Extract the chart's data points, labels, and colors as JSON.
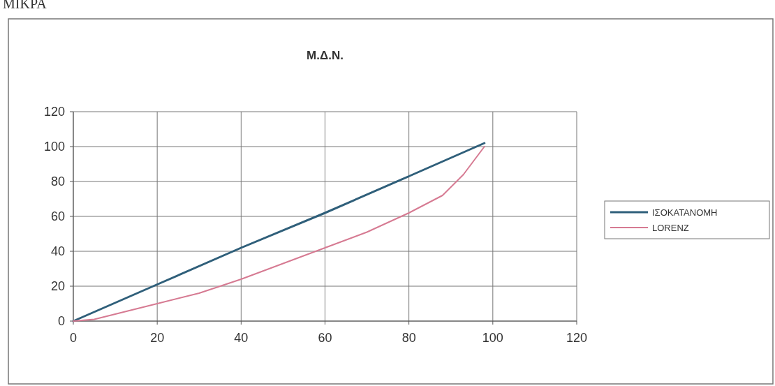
{
  "chart_data": {
    "type": "line",
    "title": "Μ.Δ.Ν.",
    "annotations": [
      "ΜΙΚΡΑ"
    ],
    "series": [
      {
        "name": "ΙΣΟΚΑΤΑΝΟΜΗ",
        "color": "#2f5f7a",
        "x": [
          0,
          20,
          40,
          60,
          80,
          98
        ],
        "values": [
          0,
          21,
          42,
          62,
          83,
          102
        ]
      },
      {
        "name": "LORENZ",
        "color": "#d67a92",
        "x": [
          0,
          5,
          10,
          20,
          30,
          40,
          50,
          60,
          70,
          80,
          88,
          93,
          98
        ],
        "values": [
          0,
          1,
          4,
          10,
          16,
          24,
          33,
          42,
          51,
          62,
          72,
          84,
          100
        ]
      }
    ],
    "xlim": [
      0,
      120
    ],
    "xticks": [
      0,
      20,
      40,
      60,
      80,
      100,
      120
    ],
    "ylim": [
      0,
      120
    ],
    "yticks": [
      0,
      20,
      40,
      60,
      80,
      100,
      120
    ],
    "grid": true,
    "legend": "right",
    "marker": "none",
    "line_style": "solid"
  }
}
